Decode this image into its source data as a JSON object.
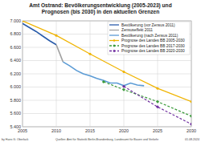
{
  "chart_data": {
    "type": "line",
    "title": "Amt Ostrand: Bevölkerungsentwicklung (2005-2023) und Prognosen (bis 2030) in den aktuellen Grenzen",
    "author": "by Hans G. Oberlack",
    "source": "Quellen: Amt für Statistik Berlin-Brandenburg, Landesamt für Bauen und Verkehr",
    "date": "01.08.2024",
    "xlim": [
      2005,
      2030
    ],
    "xticks": [
      2005,
      2010,
      2015,
      2020,
      2025,
      2030
    ],
    "ylim": [
      5400,
      7000
    ],
    "yticks": [
      {
        "value": 5400,
        "label": "5.400"
      },
      {
        "value": 5600,
        "label": "5.600"
      },
      {
        "value": 5800,
        "label": "5.800"
      },
      {
        "value": 6000,
        "label": "6.000"
      },
      {
        "value": 6200,
        "label": "6.200"
      },
      {
        "value": 6400,
        "label": "6.400"
      },
      {
        "value": 6600,
        "label": "6.600"
      },
      {
        "value": 6800,
        "label": "6.800"
      },
      {
        "value": 7000,
        "label": "7.000"
      }
    ],
    "grid": true,
    "legend": "upper right",
    "series": [
      {
        "name": "Bevölkerung (vor Zensus 2011)",
        "color": "#2a5caa",
        "line_style": "solid",
        "marker": "none",
        "x": [
          2005,
          2006,
          2007,
          2008,
          2009,
          2010
        ],
        "values": [
          6960,
          6900,
          6840,
          6770,
          6700,
          6640
        ]
      },
      {
        "name": "Zensuseffekt 2011",
        "color": "#a0a0a0",
        "line_style": "solid",
        "marker": "none",
        "x": [
          2010,
          2011
        ],
        "values": [
          6640,
          6380
        ]
      },
      {
        "name": "Bevölkerung (nach Zensus 2011)",
        "color": "#5b9bd5",
        "line_style": "solid",
        "marker": "none",
        "x": [
          2011,
          2012,
          2013,
          2014,
          2015,
          2016,
          2017,
          2018,
          2019,
          2020,
          2021,
          2022,
          2023
        ],
        "values": [
          6380,
          6320,
          6250,
          6200,
          6170,
          6130,
          6100,
          6060,
          6060,
          6020,
          6060,
          6030,
          6020
        ]
      },
      {
        "name": "Prognose des Landes BB 2005-2030",
        "color": "#f0b400",
        "line_style": "solid",
        "marker": "circle",
        "x": [
          2005,
          2010,
          2015,
          2020,
          2025,
          2030
        ],
        "values": [
          7000,
          6780,
          6500,
          6230,
          5980,
          5780
        ]
      },
      {
        "name": "Prognose des Landes BB 2017-2030",
        "color": "#3a9a3a",
        "line_style": "dashed",
        "marker": "diamond",
        "x": [
          2017,
          2020,
          2025,
          2030
        ],
        "values": [
          6080,
          5960,
          5780,
          5560
        ]
      },
      {
        "name": "Prognose des Landes BB 2020-2030",
        "color": "#7030a0",
        "line_style": "dashed",
        "marker": "diamond",
        "x": [
          2020,
          2025,
          2030
        ],
        "values": [
          6010,
          5700,
          5440
        ]
      }
    ]
  }
}
